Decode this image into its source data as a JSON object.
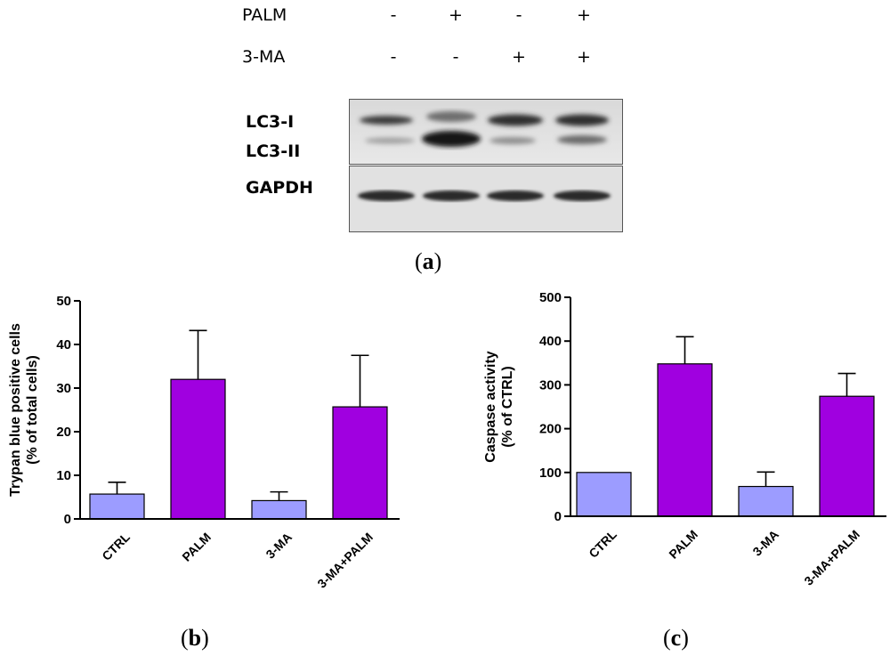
{
  "western_blot": {
    "treatments": [
      {
        "name": "PALM",
        "signs": [
          "-",
          "+",
          "-",
          "+"
        ]
      },
      {
        "name": "3-MA",
        "signs": [
          "-",
          "-",
          "+",
          "+"
        ]
      }
    ],
    "bands": {
      "lc3_i": "LC3-I",
      "lc3_ii": "LC3-II",
      "gapdh": "GAPDH"
    },
    "panel_label": "a"
  },
  "panel_labels": {
    "b": "b",
    "c": "c"
  },
  "colors": {
    "ctrl_bar": "#9c9cff",
    "treated_bar": "#a000e0"
  },
  "chart_data": [
    {
      "type": "bar",
      "title": "",
      "xlabel": "",
      "ylabel": "Trypan blue positive cells\n(% of total cells)",
      "categories": [
        "CTRL",
        "PALM",
        "3-MA",
        "3-MA+PALM"
      ],
      "values": [
        5.7,
        32.0,
        4.2,
        25.7
      ],
      "errors": [
        2.7,
        11.2,
        2.0,
        11.8
      ],
      "ylim": [
        0,
        50
      ],
      "yticks": [
        0,
        10,
        20,
        30,
        40,
        50
      ],
      "bar_colors": [
        "#9c9cff",
        "#a000e0",
        "#9c9cff",
        "#a000e0"
      ],
      "grid": false
    },
    {
      "type": "bar",
      "title": "",
      "xlabel": "",
      "ylabel": "Caspase activity\n(% of CTRL)",
      "categories": [
        "CTRL",
        "PALM",
        "3-MA",
        "3-MA+PALM"
      ],
      "values": [
        100,
        348,
        68,
        274
      ],
      "errors": [
        0,
        62,
        33,
        52
      ],
      "ylim": [
        0,
        500
      ],
      "yticks": [
        0,
        100,
        200,
        300,
        400,
        500
      ],
      "bar_colors": [
        "#9c9cff",
        "#a000e0",
        "#9c9cff",
        "#a000e0"
      ],
      "grid": false
    }
  ]
}
